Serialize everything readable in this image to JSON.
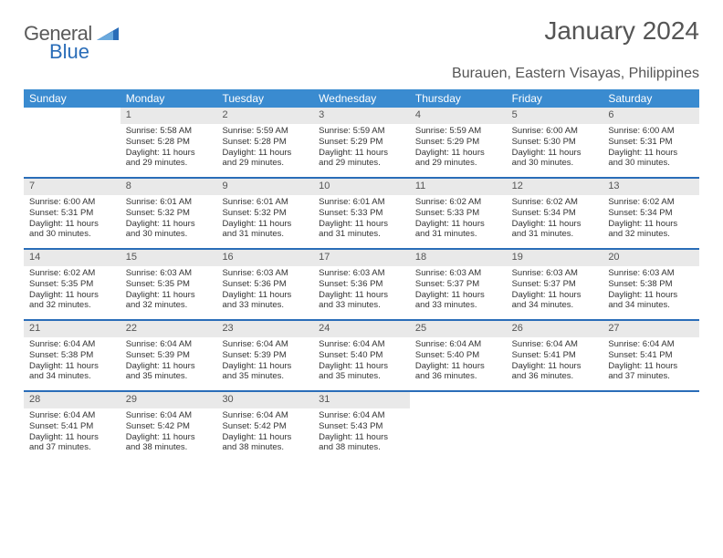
{
  "brand": {
    "part1": "General",
    "part2": "Blue",
    "shape_color": "#2a6db8"
  },
  "title": "January 2024",
  "location": "Burauen, Eastern Visayas, Philippines",
  "colors": {
    "header_bg": "#3a8bd0",
    "header_text": "#ffffff",
    "week_border": "#2a6db8",
    "daynum_bg": "#e9e9e9",
    "text": "#333333"
  },
  "day_names": [
    "Sunday",
    "Monday",
    "Tuesday",
    "Wednesday",
    "Thursday",
    "Friday",
    "Saturday"
  ],
  "weeks": [
    [
      {
        "n": "",
        "empty": true
      },
      {
        "n": "1",
        "sunrise": "Sunrise: 5:58 AM",
        "sunset": "Sunset: 5:28 PM",
        "d1": "Daylight: 11 hours",
        "d2": "and 29 minutes."
      },
      {
        "n": "2",
        "sunrise": "Sunrise: 5:59 AM",
        "sunset": "Sunset: 5:28 PM",
        "d1": "Daylight: 11 hours",
        "d2": "and 29 minutes."
      },
      {
        "n": "3",
        "sunrise": "Sunrise: 5:59 AM",
        "sunset": "Sunset: 5:29 PM",
        "d1": "Daylight: 11 hours",
        "d2": "and 29 minutes."
      },
      {
        "n": "4",
        "sunrise": "Sunrise: 5:59 AM",
        "sunset": "Sunset: 5:29 PM",
        "d1": "Daylight: 11 hours",
        "d2": "and 29 minutes."
      },
      {
        "n": "5",
        "sunrise": "Sunrise: 6:00 AM",
        "sunset": "Sunset: 5:30 PM",
        "d1": "Daylight: 11 hours",
        "d2": "and 30 minutes."
      },
      {
        "n": "6",
        "sunrise": "Sunrise: 6:00 AM",
        "sunset": "Sunset: 5:31 PM",
        "d1": "Daylight: 11 hours",
        "d2": "and 30 minutes."
      }
    ],
    [
      {
        "n": "7",
        "sunrise": "Sunrise: 6:00 AM",
        "sunset": "Sunset: 5:31 PM",
        "d1": "Daylight: 11 hours",
        "d2": "and 30 minutes."
      },
      {
        "n": "8",
        "sunrise": "Sunrise: 6:01 AM",
        "sunset": "Sunset: 5:32 PM",
        "d1": "Daylight: 11 hours",
        "d2": "and 30 minutes."
      },
      {
        "n": "9",
        "sunrise": "Sunrise: 6:01 AM",
        "sunset": "Sunset: 5:32 PM",
        "d1": "Daylight: 11 hours",
        "d2": "and 31 minutes."
      },
      {
        "n": "10",
        "sunrise": "Sunrise: 6:01 AM",
        "sunset": "Sunset: 5:33 PM",
        "d1": "Daylight: 11 hours",
        "d2": "and 31 minutes."
      },
      {
        "n": "11",
        "sunrise": "Sunrise: 6:02 AM",
        "sunset": "Sunset: 5:33 PM",
        "d1": "Daylight: 11 hours",
        "d2": "and 31 minutes."
      },
      {
        "n": "12",
        "sunrise": "Sunrise: 6:02 AM",
        "sunset": "Sunset: 5:34 PM",
        "d1": "Daylight: 11 hours",
        "d2": "and 31 minutes."
      },
      {
        "n": "13",
        "sunrise": "Sunrise: 6:02 AM",
        "sunset": "Sunset: 5:34 PM",
        "d1": "Daylight: 11 hours",
        "d2": "and 32 minutes."
      }
    ],
    [
      {
        "n": "14",
        "sunrise": "Sunrise: 6:02 AM",
        "sunset": "Sunset: 5:35 PM",
        "d1": "Daylight: 11 hours",
        "d2": "and 32 minutes."
      },
      {
        "n": "15",
        "sunrise": "Sunrise: 6:03 AM",
        "sunset": "Sunset: 5:35 PM",
        "d1": "Daylight: 11 hours",
        "d2": "and 32 minutes."
      },
      {
        "n": "16",
        "sunrise": "Sunrise: 6:03 AM",
        "sunset": "Sunset: 5:36 PM",
        "d1": "Daylight: 11 hours",
        "d2": "and 33 minutes."
      },
      {
        "n": "17",
        "sunrise": "Sunrise: 6:03 AM",
        "sunset": "Sunset: 5:36 PM",
        "d1": "Daylight: 11 hours",
        "d2": "and 33 minutes."
      },
      {
        "n": "18",
        "sunrise": "Sunrise: 6:03 AM",
        "sunset": "Sunset: 5:37 PM",
        "d1": "Daylight: 11 hours",
        "d2": "and 33 minutes."
      },
      {
        "n": "19",
        "sunrise": "Sunrise: 6:03 AM",
        "sunset": "Sunset: 5:37 PM",
        "d1": "Daylight: 11 hours",
        "d2": "and 34 minutes."
      },
      {
        "n": "20",
        "sunrise": "Sunrise: 6:03 AM",
        "sunset": "Sunset: 5:38 PM",
        "d1": "Daylight: 11 hours",
        "d2": "and 34 minutes."
      }
    ],
    [
      {
        "n": "21",
        "sunrise": "Sunrise: 6:04 AM",
        "sunset": "Sunset: 5:38 PM",
        "d1": "Daylight: 11 hours",
        "d2": "and 34 minutes."
      },
      {
        "n": "22",
        "sunrise": "Sunrise: 6:04 AM",
        "sunset": "Sunset: 5:39 PM",
        "d1": "Daylight: 11 hours",
        "d2": "and 35 minutes."
      },
      {
        "n": "23",
        "sunrise": "Sunrise: 6:04 AM",
        "sunset": "Sunset: 5:39 PM",
        "d1": "Daylight: 11 hours",
        "d2": "and 35 minutes."
      },
      {
        "n": "24",
        "sunrise": "Sunrise: 6:04 AM",
        "sunset": "Sunset: 5:40 PM",
        "d1": "Daylight: 11 hours",
        "d2": "and 35 minutes."
      },
      {
        "n": "25",
        "sunrise": "Sunrise: 6:04 AM",
        "sunset": "Sunset: 5:40 PM",
        "d1": "Daylight: 11 hours",
        "d2": "and 36 minutes."
      },
      {
        "n": "26",
        "sunrise": "Sunrise: 6:04 AM",
        "sunset": "Sunset: 5:41 PM",
        "d1": "Daylight: 11 hours",
        "d2": "and 36 minutes."
      },
      {
        "n": "27",
        "sunrise": "Sunrise: 6:04 AM",
        "sunset": "Sunset: 5:41 PM",
        "d1": "Daylight: 11 hours",
        "d2": "and 37 minutes."
      }
    ],
    [
      {
        "n": "28",
        "sunrise": "Sunrise: 6:04 AM",
        "sunset": "Sunset: 5:41 PM",
        "d1": "Daylight: 11 hours",
        "d2": "and 37 minutes."
      },
      {
        "n": "29",
        "sunrise": "Sunrise: 6:04 AM",
        "sunset": "Sunset: 5:42 PM",
        "d1": "Daylight: 11 hours",
        "d2": "and 38 minutes."
      },
      {
        "n": "30",
        "sunrise": "Sunrise: 6:04 AM",
        "sunset": "Sunset: 5:42 PM",
        "d1": "Daylight: 11 hours",
        "d2": "and 38 minutes."
      },
      {
        "n": "31",
        "sunrise": "Sunrise: 6:04 AM",
        "sunset": "Sunset: 5:43 PM",
        "d1": "Daylight: 11 hours",
        "d2": "and 38 minutes."
      },
      {
        "n": "",
        "empty": true
      },
      {
        "n": "",
        "empty": true
      },
      {
        "n": "",
        "empty": true
      }
    ]
  ]
}
